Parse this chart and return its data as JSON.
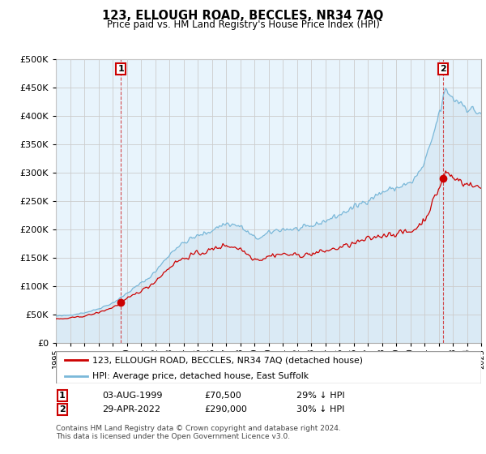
{
  "title": "123, ELLOUGH ROAD, BECCLES, NR34 7AQ",
  "subtitle": "Price paid vs. HM Land Registry's House Price Index (HPI)",
  "legend_line1": "123, ELLOUGH ROAD, BECCLES, NR34 7AQ (detached house)",
  "legend_line2": "HPI: Average price, detached house, East Suffolk",
  "annotation1_date": "03-AUG-1999",
  "annotation1_price": "£70,500",
  "annotation1_hpi": "29% ↓ HPI",
  "annotation2_date": "29-APR-2022",
  "annotation2_price": "£290,000",
  "annotation2_hpi": "30% ↓ HPI",
  "footnote": "Contains HM Land Registry data © Crown copyright and database right 2024.\nThis data is licensed under the Open Government Licence v3.0.",
  "sale1_x": 1999.58,
  "sale1_y": 70500,
  "sale2_x": 2022.33,
  "sale2_y": 290000,
  "ylim": [
    0,
    500000
  ],
  "xlim_start": 1995.0,
  "xlim_end": 2025.0,
  "hpi_color": "#7ab8d9",
  "hpi_fill": "#daeaf5",
  "price_color": "#cc0000",
  "grid_color": "#cccccc",
  "background_color": "#ffffff",
  "chart_bg": "#e8f4fc"
}
